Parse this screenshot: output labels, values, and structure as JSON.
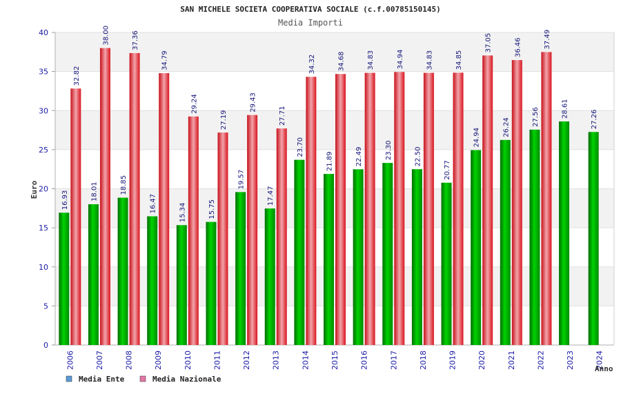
{
  "chart_data": {
    "type": "bar",
    "title": "SAN MICHELE SOCIETA COOPERATIVA SOCIALE (c.f.00785150145)",
    "subtitle": "Media Importi",
    "xlabel": "Anno",
    "ylabel": "Euro",
    "ylim": [
      0,
      40
    ],
    "yticks": [
      0,
      5,
      10,
      15,
      20,
      25,
      30,
      35,
      40
    ],
    "categories": [
      "2006",
      "2007",
      "2008",
      "2009",
      "2010",
      "2011",
      "2012",
      "2013",
      "2014",
      "2015",
      "2016",
      "2017",
      "2018",
      "2019",
      "2020",
      "2021",
      "2022",
      "2023",
      "2024"
    ],
    "series": [
      {
        "name": "Media Ente",
        "color": "#00b400",
        "legend_color": "#5b9bd5",
        "values": [
          16.93,
          18.01,
          18.85,
          16.47,
          15.34,
          15.75,
          19.57,
          17.47,
          23.7,
          21.89,
          22.49,
          23.3,
          22.5,
          20.77,
          24.94,
          26.24,
          27.56,
          28.61,
          27.26
        ],
        "labels": [
          "16.93",
          "18.01",
          "18.85",
          "16.47",
          "15.34",
          "15.75",
          "19.57",
          "17.47",
          "23.70",
          "21.89",
          "22.49",
          "23.30",
          "22.50",
          "20.77",
          "24.94",
          "26.24",
          "27.56",
          "28.61",
          "27.26"
        ]
      },
      {
        "name": "Media Nazionale",
        "color": "#e8202a",
        "legend_color": "#e377a6",
        "values": [
          32.82,
          38.0,
          37.36,
          34.79,
          29.24,
          27.19,
          29.43,
          27.71,
          34.32,
          34.68,
          34.83,
          34.94,
          34.83,
          34.85,
          37.05,
          36.46,
          37.49,
          null,
          null
        ],
        "labels": [
          "32.82",
          "38.00",
          "37.36",
          "34.79",
          "29.24",
          "27.19",
          "29.43",
          "27.71",
          "34.32",
          "34.68",
          "34.83",
          "34.94",
          "34.83",
          "34.85",
          "37.05",
          "36.46",
          "37.49",
          null,
          null
        ]
      }
    ],
    "legend_position": "bottom-left",
    "grid": true
  }
}
